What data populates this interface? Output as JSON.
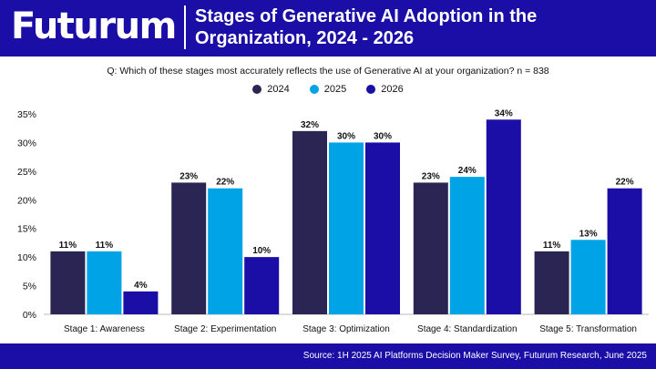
{
  "header": {
    "logo": "Futurum",
    "title": "Stages of Generative AI Adoption in the Organization, 2024 - 2026"
  },
  "question": "Q: Which of these stages most accurately reflects the use of Generative AI at your organization? n = 838",
  "footer": {
    "source": "Source: 1H 2025 AI Platforms Decision Maker Survey, Futurum Research, June 2025"
  },
  "colors": {
    "brand": "#1a0ea6",
    "s2024": "#2b2554",
    "s2025": "#00a3e6",
    "s2026": "#1a0ea6"
  },
  "chart_data": {
    "type": "bar",
    "title": "Stages of Generative AI Adoption in the Organization, 2024 - 2026",
    "categories": [
      "Stage 1: Awareness",
      "Stage 2: Experimentation",
      "Stage 3: Optimization",
      "Stage 4: Standardization",
      "Stage 5: Transformation"
    ],
    "series": [
      {
        "name": "2024",
        "color": "#2b2554",
        "values": [
          11,
          23,
          32,
          23,
          11
        ]
      },
      {
        "name": "2025",
        "color": "#00a3e6",
        "values": [
          11,
          22,
          30,
          24,
          13
        ]
      },
      {
        "name": "2026",
        "color": "#1a0ea6",
        "values": [
          4,
          10,
          30,
          34,
          22
        ]
      }
    ],
    "yticks": [
      "0%",
      "5%",
      "10%",
      "15%",
      "20%",
      "25%",
      "30%",
      "35%"
    ],
    "ylim": [
      0,
      35
    ],
    "value_suffix": "%",
    "legend_position": "top-center",
    "grid": false
  }
}
